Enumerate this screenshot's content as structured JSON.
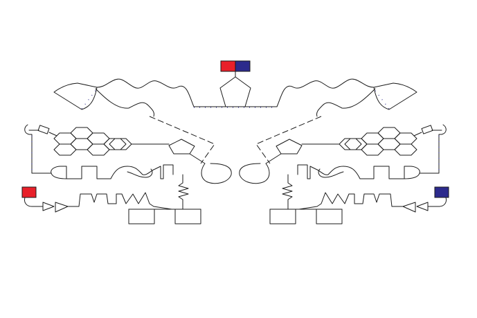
{
  "colors": {
    "background": "#ffffff",
    "line": "#1a1a1a",
    "red_block": "#e8202a",
    "blue_block": "#2c2a8c",
    "dot_accent": "#2c2a8c"
  },
  "nodes": [
    {
      "name": "top-red-block",
      "color": "red"
    },
    {
      "name": "top-blue-block",
      "color": "blue"
    },
    {
      "name": "left-red-block",
      "color": "red"
    },
    {
      "name": "right-blue-block",
      "color": "blue"
    }
  ]
}
